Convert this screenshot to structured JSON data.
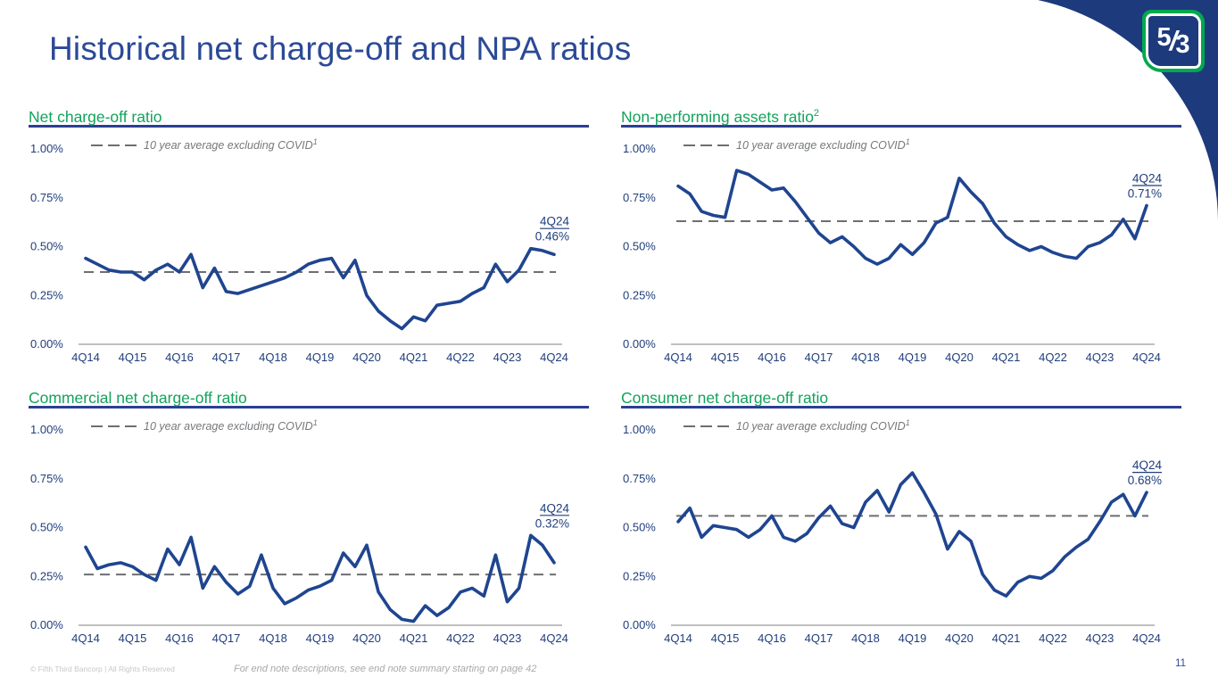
{
  "slide": {
    "title": "Historical net charge-off and NPA ratios",
    "page_number": "11"
  },
  "logo": {
    "five": "5",
    "slash": "/",
    "three": "3"
  },
  "footer": {
    "copyright": "© Fifth Third Bancorp | All Rights Reserved",
    "endnote": "For end note descriptions, see end note summary starting on page 42"
  },
  "colors": {
    "navy_line": "#1f4590",
    "corner_blue": "#1d3a7d",
    "green": "#13a35b",
    "title_blue": "#2b4a96",
    "rule_blue": "#2a3f94",
    "dash_gray": "#6d6e71",
    "legend_gray": "#75787b",
    "tick_blue": "#1f3e7c",
    "axis_gray": "#9b9b9b",
    "logo_green": "#00a94e"
  },
  "axes": {
    "y_ticks": [
      "1.00%",
      "0.75%",
      "0.50%",
      "0.25%",
      "0.00%"
    ],
    "x_ticks": [
      "4Q14",
      "4Q15",
      "4Q16",
      "4Q17",
      "4Q18",
      "4Q19",
      "4Q20",
      "4Q21",
      "4Q22",
      "4Q23",
      "4Q24"
    ],
    "ylim": [
      "0.00%",
      "1.00%"
    ],
    "frequency": "quarterly"
  },
  "chart_data": [
    {
      "type": "line",
      "title": "Net charge-off ratio",
      "title_sup": "",
      "legend_label": "10 year average excluding COVID",
      "legend_sup": "1",
      "average_value": 0.37,
      "callout_label": "4Q24",
      "callout_value": "0.46%",
      "unit": "percent",
      "ylim": [
        0,
        1
      ],
      "x_ticks": [
        "4Q14",
        "4Q15",
        "4Q16",
        "4Q17",
        "4Q18",
        "4Q19",
        "4Q20",
        "4Q21",
        "4Q22",
        "4Q23",
        "4Q24"
      ],
      "y_ticks": [
        "1.00%",
        "0.75%",
        "0.50%",
        "0.25%",
        "0.00%"
      ],
      "values": [
        0.44,
        0.41,
        0.38,
        0.37,
        0.37,
        0.33,
        0.38,
        0.41,
        0.37,
        0.46,
        0.29,
        0.39,
        0.27,
        0.26,
        0.28,
        0.3,
        0.32,
        0.34,
        0.37,
        0.41,
        0.43,
        0.44,
        0.34,
        0.43,
        0.25,
        0.17,
        0.12,
        0.08,
        0.14,
        0.12,
        0.2,
        0.21,
        0.22,
        0.26,
        0.29,
        0.41,
        0.32,
        0.38,
        0.49,
        0.48,
        0.46
      ]
    },
    {
      "type": "line",
      "title": "Non-performing assets ratio",
      "title_sup": "2",
      "legend_label": "10 year average excluding COVID",
      "legend_sup": "1",
      "average_value": 0.63,
      "callout_label": "4Q24",
      "callout_value": "0.71%",
      "unit": "percent",
      "ylim": [
        0,
        1
      ],
      "x_ticks": [
        "4Q14",
        "4Q15",
        "4Q16",
        "4Q17",
        "4Q18",
        "4Q19",
        "4Q20",
        "4Q21",
        "4Q22",
        "4Q23",
        "4Q24"
      ],
      "y_ticks": [
        "1.00%",
        "0.75%",
        "0.50%",
        "0.25%",
        "0.00%"
      ],
      "values": [
        0.81,
        0.77,
        0.68,
        0.66,
        0.65,
        0.89,
        0.87,
        0.83,
        0.79,
        0.8,
        0.73,
        0.65,
        0.57,
        0.52,
        0.55,
        0.5,
        0.44,
        0.41,
        0.44,
        0.51,
        0.46,
        0.52,
        0.62,
        0.65,
        0.85,
        0.78,
        0.72,
        0.62,
        0.55,
        0.51,
        0.48,
        0.5,
        0.47,
        0.45,
        0.44,
        0.5,
        0.52,
        0.56,
        0.64,
        0.54,
        0.71
      ]
    },
    {
      "type": "line",
      "title": "Commercial net charge-off ratio",
      "title_sup": "",
      "legend_label": "10 year average excluding COVID",
      "legend_sup": "1",
      "average_value": 0.26,
      "callout_label": "4Q24",
      "callout_value": "0.32%",
      "unit": "percent",
      "ylim": [
        0,
        1
      ],
      "x_ticks": [
        "4Q14",
        "4Q15",
        "4Q16",
        "4Q17",
        "4Q18",
        "4Q19",
        "4Q20",
        "4Q21",
        "4Q22",
        "4Q23",
        "4Q24"
      ],
      "y_ticks": [
        "1.00%",
        "0.75%",
        "0.50%",
        "0.25%",
        "0.00%"
      ],
      "values": [
        0.4,
        0.29,
        0.31,
        0.32,
        0.3,
        0.26,
        0.23,
        0.39,
        0.31,
        0.45,
        0.19,
        0.3,
        0.22,
        0.16,
        0.2,
        0.36,
        0.19,
        0.11,
        0.14,
        0.18,
        0.2,
        0.23,
        0.37,
        0.3,
        0.41,
        0.17,
        0.08,
        0.03,
        0.02,
        0.1,
        0.05,
        0.09,
        0.17,
        0.19,
        0.15,
        0.36,
        0.12,
        0.19,
        0.46,
        0.41,
        0.32
      ]
    },
    {
      "type": "line",
      "title": "Consumer net charge-off ratio",
      "title_sup": "",
      "legend_label": "10 year average excluding COVID",
      "legend_sup": "1",
      "average_value": 0.56,
      "callout_label": "4Q24",
      "callout_value": "0.68%",
      "unit": "percent",
      "ylim": [
        0,
        1
      ],
      "x_ticks": [
        "4Q14",
        "4Q15",
        "4Q16",
        "4Q17",
        "4Q18",
        "4Q19",
        "4Q20",
        "4Q21",
        "4Q22",
        "4Q23",
        "4Q24"
      ],
      "y_ticks": [
        "1.00%",
        "0.75%",
        "0.50%",
        "0.25%",
        "0.00%"
      ],
      "values": [
        0.53,
        0.6,
        0.45,
        0.51,
        0.5,
        0.49,
        0.45,
        0.49,
        0.56,
        0.45,
        0.43,
        0.47,
        0.55,
        0.61,
        0.52,
        0.5,
        0.63,
        0.69,
        0.58,
        0.72,
        0.78,
        0.68,
        0.57,
        0.39,
        0.48,
        0.43,
        0.26,
        0.18,
        0.15,
        0.22,
        0.25,
        0.24,
        0.28,
        0.35,
        0.4,
        0.44,
        0.53,
        0.63,
        0.67,
        0.56,
        0.68
      ]
    }
  ]
}
